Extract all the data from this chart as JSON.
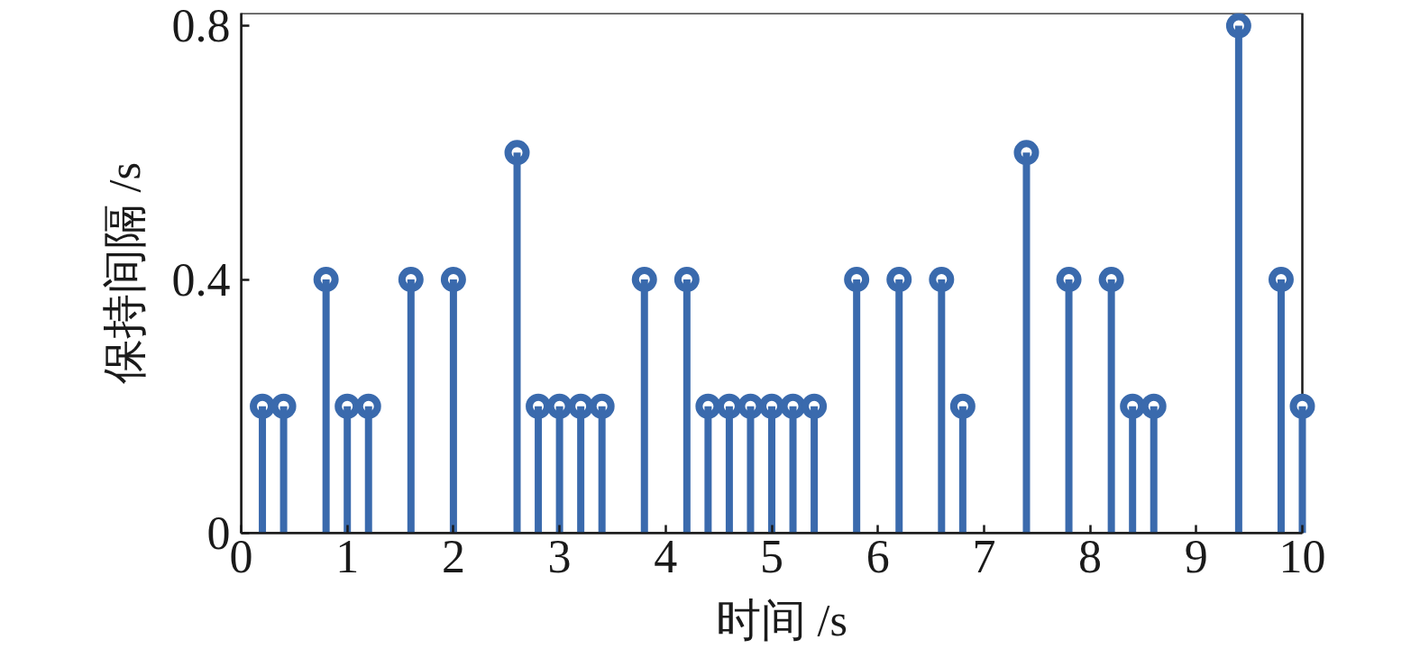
{
  "chart_data": {
    "type": "lollipop",
    "xlabel": "时间 /s",
    "ylabel": "保持间隔 /s",
    "x": [
      0.2,
      0.4,
      0.8,
      1.0,
      1.2,
      1.6,
      2.0,
      2.6,
      2.8,
      3.0,
      3.2,
      3.4,
      3.8,
      4.2,
      4.4,
      4.6,
      4.8,
      5.0,
      5.2,
      5.4,
      5.8,
      6.2,
      6.6,
      6.8,
      7.4,
      7.8,
      8.2,
      8.4,
      8.6,
      9.4,
      9.8,
      10.0
    ],
    "values": [
      0.2,
      0.2,
      0.4,
      0.2,
      0.2,
      0.4,
      0.4,
      0.6,
      0.2,
      0.2,
      0.2,
      0.2,
      0.4,
      0.4,
      0.2,
      0.2,
      0.2,
      0.2,
      0.2,
      0.2,
      0.4,
      0.4,
      0.4,
      0.2,
      0.6,
      0.4,
      0.4,
      0.2,
      0.2,
      0.8,
      0.4,
      0.2
    ],
    "color": "#3a6aad",
    "marker": "circle",
    "grid": false,
    "xlim": [
      0,
      10
    ],
    "ylim": [
      0,
      0.82
    ],
    "xticks": [
      0,
      1,
      2,
      3,
      4,
      5,
      6,
      7,
      8,
      9,
      10
    ],
    "yticks": [
      0,
      0.4,
      0.8
    ]
  }
}
